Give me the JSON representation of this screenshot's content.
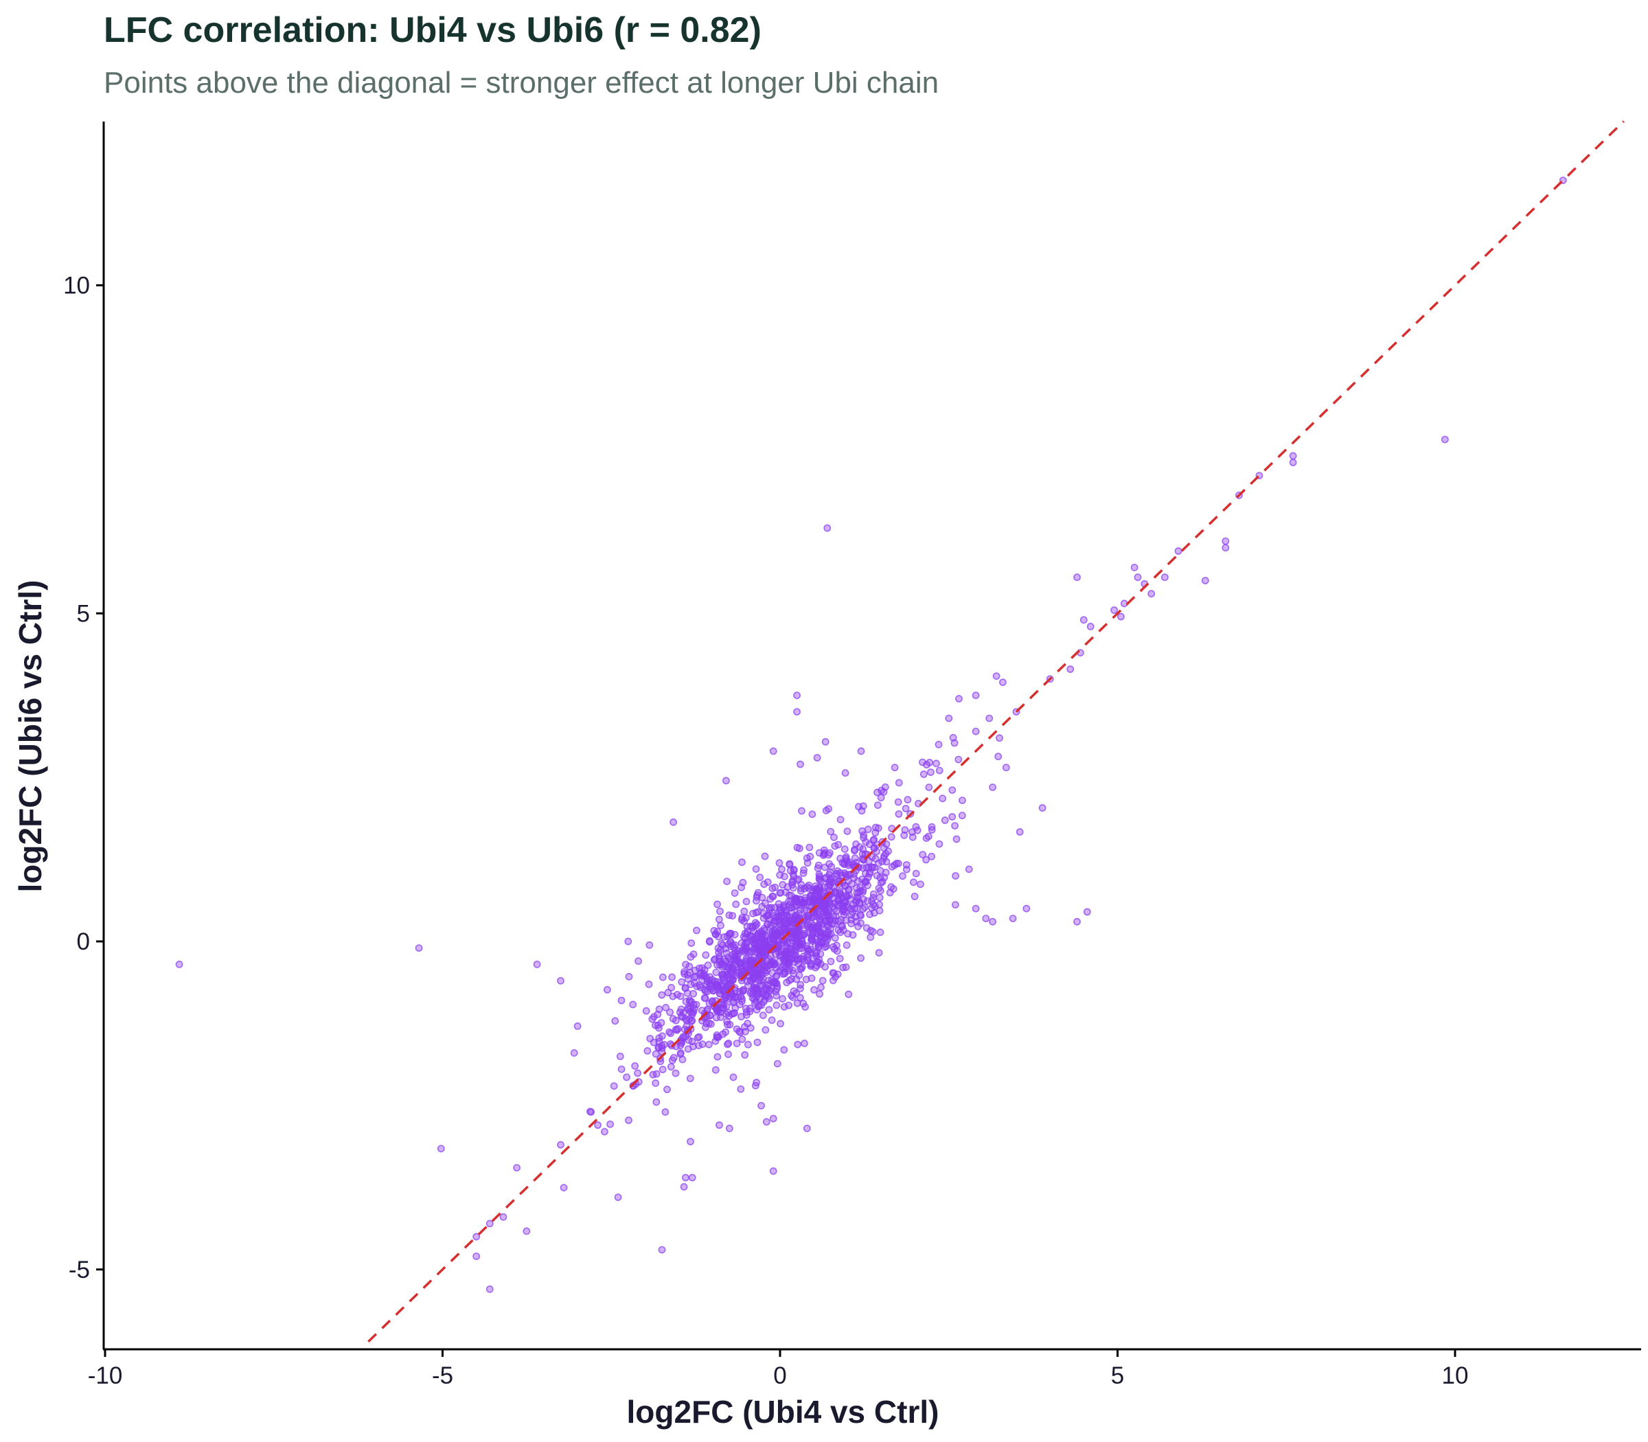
{
  "title": "LFC correlation: Ubi4 vs Ubi6 (r = 0.82)",
  "subtitle": "Points above the diagonal = stronger effect at longer Ubi chain",
  "chart_data": {
    "type": "scatter",
    "title": "LFC correlation: Ubi4 vs Ubi6 (r = 0.82)",
    "subtitle": "Points above the diagonal = stronger effect at longer Ubi chain",
    "xlabel": "log2FC (Ubi4 vs Ctrl)",
    "ylabel": "log2FC (Ubi6 vs Ctrl)",
    "xlim": [
      -10,
      12.7
    ],
    "ylim": [
      -6.1,
      12.5
    ],
    "xticks": [
      -10,
      -5,
      0,
      5,
      10
    ],
    "yticks": [
      -5,
      0,
      5,
      10
    ],
    "grid": false,
    "legend": "none",
    "reference_line": {
      "type": "identity",
      "slope": 1,
      "intercept": 0,
      "style": "dashed",
      "color": "#d62f2f"
    },
    "point_color": "#8b3ff0",
    "cluster": {
      "n": 1500,
      "x_mean": 0,
      "y_mean": 0,
      "x_sd": 0.85,
      "y_sd": 0.8,
      "r": 0.82
    },
    "points": [
      {
        "x": -8.9,
        "y": -0.35
      },
      {
        "x": -5.35,
        "y": -0.1
      },
      {
        "x": -3.6,
        "y": -0.35
      },
      {
        "x": -3.25,
        "y": -0.6
      },
      {
        "x": -3.05,
        "y": -1.7
      },
      {
        "x": -3.25,
        "y": -3.1
      },
      {
        "x": -3.9,
        "y": -3.45
      },
      {
        "x": -4.1,
        "y": -4.2
      },
      {
        "x": -4.3,
        "y": -4.3
      },
      {
        "x": -4.5,
        "y": -4.5
      },
      {
        "x": -4.5,
        "y": -4.8
      },
      {
        "x": -4.3,
        "y": -5.3
      },
      {
        "x": -2.4,
        "y": -3.9
      },
      {
        "x": -1.75,
        "y": -4.7
      },
      {
        "x": -1.4,
        "y": -3.6
      },
      {
        "x": -1.3,
        "y": -3.6
      },
      {
        "x": -0.1,
        "y": -3.5
      },
      {
        "x": -2.8,
        "y": -2.6
      },
      {
        "x": -2.7,
        "y": -2.8
      },
      {
        "x": -2.6,
        "y": -2.9
      },
      {
        "x": -1.7,
        "y": -2.6
      },
      {
        "x": -0.9,
        "y": -2.8
      },
      {
        "x": -0.75,
        "y": -2.85
      },
      {
        "x": 0.4,
        "y": -2.85
      },
      {
        "x": -0.1,
        "y": -2.7
      },
      {
        "x": -0.2,
        "y": -2.75
      },
      {
        "x": -2.35,
        "y": -0.9
      },
      {
        "x": -2.1,
        "y": -0.3
      },
      {
        "x": -2.25,
        "y": 0.0
      },
      {
        "x": 0.7,
        "y": 6.3
      },
      {
        "x": 0.25,
        "y": 3.75
      },
      {
        "x": 0.25,
        "y": 3.5
      },
      {
        "x": -0.1,
        "y": 2.9
      },
      {
        "x": 0.3,
        "y": 2.7
      },
      {
        "x": 0.55,
        "y": 2.8
      },
      {
        "x": -0.8,
        "y": 2.45
      },
      {
        "x": 1.2,
        "y": 2.9
      },
      {
        "x": 1.5,
        "y": 2.3
      },
      {
        "x": 1.7,
        "y": 2.65
      },
      {
        "x": 1.85,
        "y": 1.7
      },
      {
        "x": 2.2,
        "y": 1.6
      },
      {
        "x": 2.05,
        "y": 2.1
      },
      {
        "x": 2.35,
        "y": 3.0
      },
      {
        "x": 2.5,
        "y": 3.4
      },
      {
        "x": 2.65,
        "y": 3.7
      },
      {
        "x": 2.9,
        "y": 3.75
      },
      {
        "x": 3.1,
        "y": 3.4
      },
      {
        "x": 3.3,
        "y": 3.95
      },
      {
        "x": 3.5,
        "y": 3.5
      },
      {
        "x": 3.25,
        "y": 3.1
      },
      {
        "x": 2.9,
        "y": 3.2
      },
      {
        "x": 3.35,
        "y": 2.65
      },
      {
        "x": 3.15,
        "y": 2.35
      },
      {
        "x": 2.7,
        "y": 2.15
      },
      {
        "x": 2.55,
        "y": 1.9
      },
      {
        "x": 2.6,
        "y": 1.0
      },
      {
        "x": 2.8,
        "y": 1.1
      },
      {
        "x": 2.9,
        "y": 0.5
      },
      {
        "x": 3.05,
        "y": 0.35
      },
      {
        "x": 3.15,
        "y": 0.3
      },
      {
        "x": 3.45,
        "y": 0.35
      },
      {
        "x": 3.65,
        "y": 0.5
      },
      {
        "x": 4.4,
        "y": 0.3
      },
      {
        "x": 4.55,
        "y": 0.45
      },
      {
        "x": 4.0,
        "y": 4.0
      },
      {
        "x": 4.3,
        "y": 4.15
      },
      {
        "x": 4.45,
        "y": 4.4
      },
      {
        "x": 4.6,
        "y": 4.8
      },
      {
        "x": 4.5,
        "y": 4.9
      },
      {
        "x": 4.4,
        "y": 5.55
      },
      {
        "x": 4.95,
        "y": 5.05
      },
      {
        "x": 5.05,
        "y": 4.95
      },
      {
        "x": 5.1,
        "y": 5.15
      },
      {
        "x": 5.25,
        "y": 5.7
      },
      {
        "x": 5.3,
        "y": 5.55
      },
      {
        "x": 5.4,
        "y": 5.45
      },
      {
        "x": 5.5,
        "y": 5.3
      },
      {
        "x": 5.7,
        "y": 5.55
      },
      {
        "x": 5.9,
        "y": 5.95
      },
      {
        "x": 6.3,
        "y": 5.5
      },
      {
        "x": 6.6,
        "y": 6.1
      },
      {
        "x": 6.6,
        "y": 6.0
      },
      {
        "x": 6.8,
        "y": 6.8
      },
      {
        "x": 7.1,
        "y": 7.1
      },
      {
        "x": 7.6,
        "y": 7.4
      },
      {
        "x": 7.6,
        "y": 7.3
      },
      {
        "x": 9.85,
        "y": 7.65
      },
      {
        "x": 11.6,
        "y": 11.6
      }
    ]
  }
}
